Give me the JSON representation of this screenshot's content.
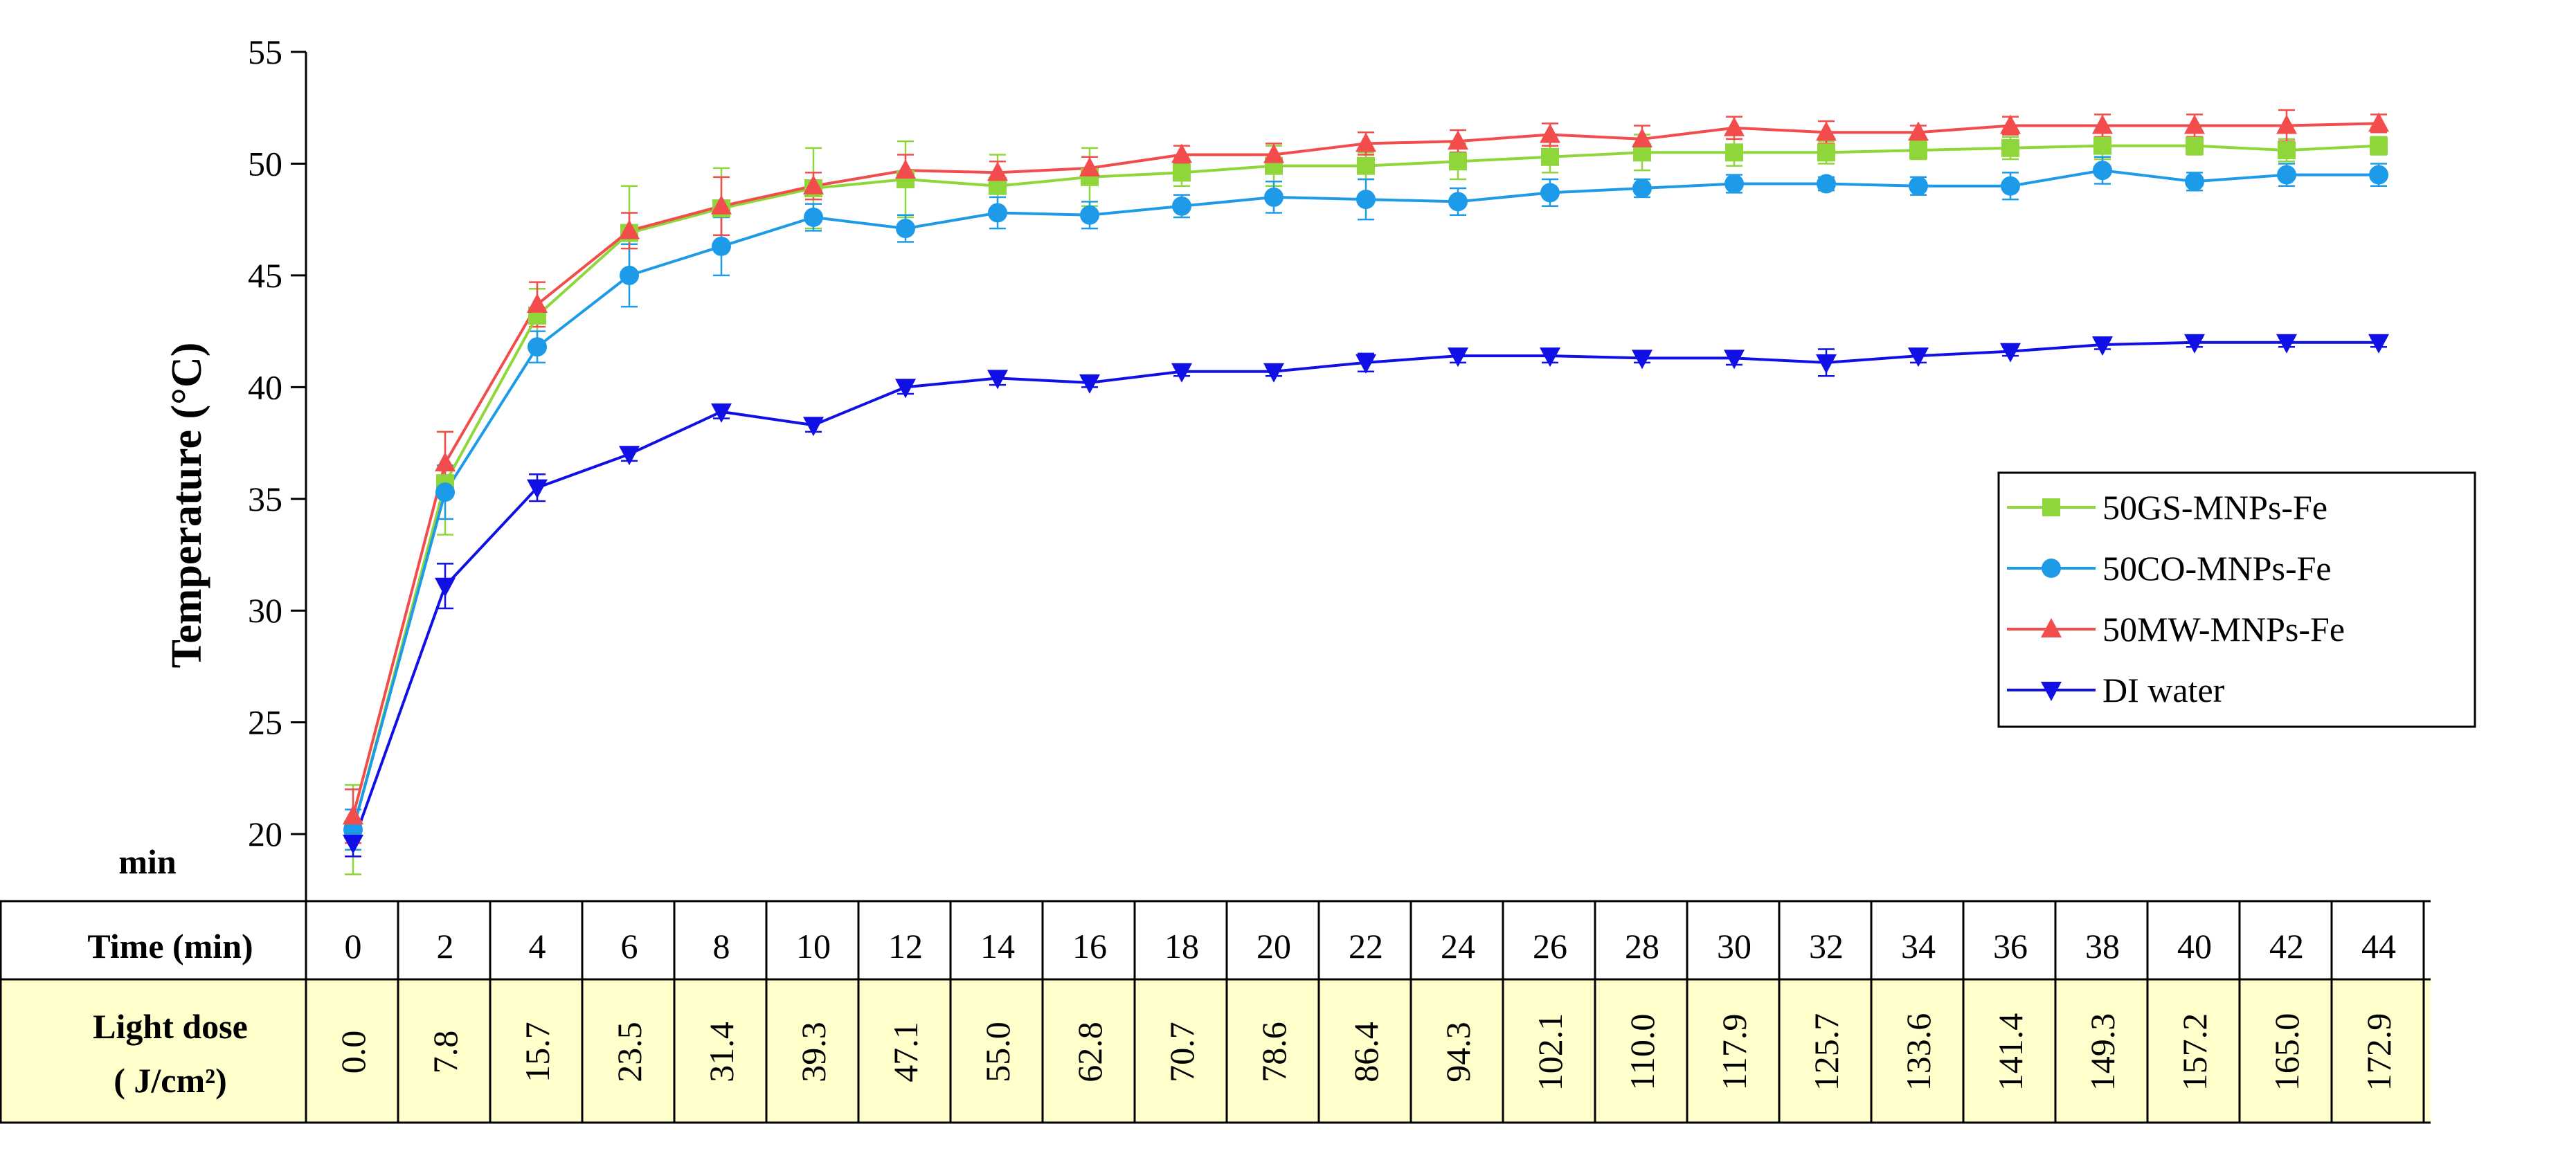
{
  "chart_data": {
    "type": "line",
    "ylabel": "Temperature (°C)",
    "ylim": [
      17,
      55
    ],
    "yticks": [
      20,
      25,
      30,
      35,
      40,
      45,
      50,
      55
    ],
    "x": [
      0,
      2,
      4,
      6,
      8,
      10,
      12,
      14,
      16,
      18,
      20,
      22,
      24,
      26,
      28,
      30,
      32,
      34,
      36,
      38,
      40,
      42,
      44
    ],
    "corner_label": "min",
    "legend_position": "right",
    "series": [
      {
        "name": "50GS-MNPs-Fe",
        "color": "#8fd63a",
        "marker": "square",
        "values": [
          20.2,
          35.7,
          43.2,
          46.9,
          48.0,
          48.9,
          49.3,
          49.0,
          49.4,
          49.6,
          49.9,
          49.9,
          50.1,
          50.3,
          50.5,
          50.5,
          50.5,
          50.6,
          50.7,
          50.8,
          50.8,
          50.6,
          50.8
        ],
        "errors": [
          2.0,
          2.3,
          1.2,
          2.1,
          1.8,
          1.8,
          1.7,
          1.4,
          1.3,
          0.6,
          0.9,
          0.6,
          0.8,
          0.7,
          0.8,
          0.6,
          0.5,
          0.4,
          0.5,
          0.6,
          0.4,
          0.5,
          0.4
        ]
      },
      {
        "name": "50CO-MNPs-Fe",
        "color": "#1e9be8",
        "marker": "circle",
        "values": [
          20.2,
          35.3,
          41.8,
          45.0,
          46.3,
          47.6,
          47.1,
          47.8,
          47.7,
          48.1,
          48.5,
          48.4,
          48.3,
          48.7,
          48.9,
          49.1,
          49.1,
          49.0,
          49.0,
          49.7,
          49.2,
          49.5,
          49.5
        ],
        "errors": [
          0.9,
          1.2,
          0.7,
          1.4,
          1.3,
          0.6,
          0.6,
          0.7,
          0.6,
          0.5,
          0.7,
          0.9,
          0.6,
          0.6,
          0.4,
          0.4,
          0.3,
          0.4,
          0.6,
          0.6,
          0.4,
          0.5,
          0.5
        ]
      },
      {
        "name": "50MW-MNPs-Fe",
        "color": "#f24c4c",
        "marker": "triangle-up",
        "values": [
          20.8,
          36.6,
          43.7,
          47.0,
          48.1,
          49.0,
          49.7,
          49.6,
          49.8,
          50.4,
          50.4,
          50.9,
          51.0,
          51.3,
          51.1,
          51.6,
          51.4,
          51.4,
          51.7,
          51.7,
          51.7,
          51.7,
          51.8
        ],
        "errors": [
          1.2,
          1.4,
          1.0,
          0.8,
          1.3,
          0.6,
          0.7,
          0.5,
          0.5,
          0.4,
          0.5,
          0.5,
          0.5,
          0.5,
          0.6,
          0.5,
          0.5,
          0.3,
          0.4,
          0.5,
          0.5,
          0.7,
          0.4
        ]
      },
      {
        "name": "DI water",
        "color": "#1010e6",
        "marker": "triangle-down",
        "values": [
          19.6,
          31.1,
          35.5,
          37.0,
          38.9,
          38.3,
          40.0,
          40.4,
          40.2,
          40.7,
          40.7,
          41.1,
          41.4,
          41.4,
          41.3,
          41.3,
          41.1,
          41.4,
          41.6,
          41.9,
          42.0,
          42.0,
          42.0
        ],
        "errors": [
          0.6,
          1.0,
          0.6,
          0.3,
          0.3,
          0.3,
          0.3,
          0.3,
          0.2,
          0.2,
          0.2,
          0.4,
          0.3,
          0.3,
          0.2,
          0.3,
          0.6,
          0.3,
          0.2,
          0.2,
          0.2,
          0.2,
          0.2
        ]
      }
    ],
    "table": {
      "time_header": "Time  (min)",
      "dose_header_line1": "Light dose",
      "dose_header_line2": "( J/cm²)",
      "time_values": [
        "0",
        "2",
        "4",
        "6",
        "8",
        "10",
        "12",
        "14",
        "16",
        "18",
        "20",
        "22",
        "24",
        "26",
        "28",
        "30",
        "32",
        "34",
        "36",
        "38",
        "40",
        "42",
        "44"
      ],
      "dose_values": [
        "0.0",
        "7.8",
        "15.7",
        "23.5",
        "31.4",
        "39.3",
        "47.1",
        "55.0",
        "62.8",
        "70.7",
        "78.6",
        "86.4",
        "94.3",
        "102.1",
        "110.0",
        "117.9",
        "125.7",
        "133.6",
        "141.4",
        "149.3",
        "157.2",
        "165.0",
        "172.9"
      ],
      "dose_row_color": "#ffffcc"
    }
  }
}
